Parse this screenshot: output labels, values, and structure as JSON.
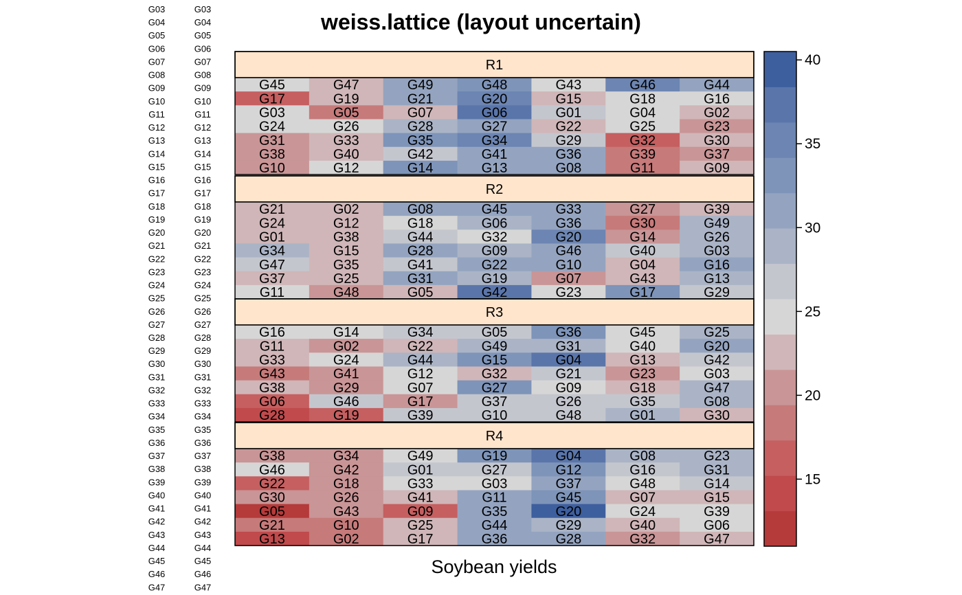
{
  "chart_data": {
    "type": "heatmap",
    "title": "weiss.lattice (layout uncertain)",
    "xlabel": "Soybean yields",
    "ylabel": "",
    "side_labels_col1": [
      "G03",
      "G04",
      "G05",
      "G06",
      "G07",
      "G08",
      "G09",
      "G10",
      "G11",
      "G12",
      "G13",
      "G14",
      "G15",
      "G16",
      "G17",
      "G18",
      "G19",
      "G20",
      "G21",
      "G22",
      "G23",
      "G24",
      "G25",
      "G26",
      "G27",
      "G28",
      "G29",
      "G30",
      "G31",
      "G32",
      "G33",
      "G34",
      "G35",
      "G36",
      "G37",
      "G38",
      "G39",
      "G40",
      "G41",
      "G42",
      "G43",
      "G44",
      "G45",
      "G46",
      "G47"
    ],
    "side_labels_col2": [
      "G03",
      "G04",
      "G05",
      "G06",
      "G07",
      "G08",
      "G09",
      "G10",
      "G11",
      "G12",
      "G13",
      "G14",
      "G15",
      "G16",
      "G17",
      "G18",
      "G19",
      "G20",
      "G21",
      "G22",
      "G23",
      "G24",
      "G25",
      "G26",
      "G27",
      "G28",
      "G29",
      "G30",
      "G31",
      "G32",
      "G33",
      "G34",
      "G35",
      "G36",
      "G37",
      "G38",
      "G39",
      "G40",
      "G41",
      "G42",
      "G43",
      "G44",
      "G45",
      "G46",
      "G47"
    ],
    "colorbar": {
      "range": [
        11,
        40.5
      ],
      "ticks": [
        15,
        20,
        25,
        30,
        35,
        40
      ],
      "colors": [
        "#b53a3a",
        "#c04a4c",
        "#c55f60",
        "#c67a7a",
        "#c99596",
        "#d0b6b8",
        "#d6d6d6",
        "#c4c6ce",
        "#aab4c6",
        "#94a4c0",
        "#7e94b9",
        "#6c85b2",
        "#5a75aa",
        "#3e5f9e"
      ]
    },
    "panels": [
      {
        "name": "R1",
        "rows": [
          {
            "labels": [
              "G45",
              "G47",
              "G49",
              "G48",
              "G43",
              "G46",
              "G44"
            ],
            "values": [
              25,
              23,
              32,
              33,
              25,
              35,
              30
            ]
          },
          {
            "labels": [
              "G17",
              "G19",
              "G21",
              "G20",
              "G15",
              "G18",
              "G16"
            ],
            "values": [
              17,
              23,
              30,
              36,
              23,
              25,
              25
            ]
          },
          {
            "labels": [
              "G03",
              "G05",
              "G07",
              "G06",
              "G01",
              "G04",
              "G02"
            ],
            "values": [
              25,
              18,
              23,
              37,
              27,
              25,
              23
            ]
          },
          {
            "labels": [
              "G24",
              "G26",
              "G28",
              "G27",
              "G22",
              "G25",
              "G23"
            ],
            "values": [
              25,
              25,
              28,
              31,
              23,
              25,
              20
            ]
          },
          {
            "labels": [
              "G31",
              "G33",
              "G35",
              "G34",
              "G29",
              "G32",
              "G30"
            ],
            "values": [
              21,
              23,
              33,
              36,
              27,
              17,
              23
            ]
          },
          {
            "labels": [
              "G38",
              "G40",
              "G42",
              "G41",
              "G36",
              "G39",
              "G37"
            ],
            "values": [
              21,
              23,
              27,
              31,
              30,
              18,
              21
            ]
          },
          {
            "labels": [
              "G10",
              "G12",
              "G14",
              "G13",
              "G08",
              "G11",
              "G09"
            ],
            "values": [
              21,
              25,
              33,
              30,
              31,
              18,
              22
            ]
          }
        ]
      },
      {
        "name": "R2",
        "rows": [
          {
            "labels": [
              "G21",
              "G02",
              "G08",
              "G45",
              "G33",
              "G27",
              "G39"
            ],
            "values": [
              23,
              23,
              30,
              31,
              31,
              20,
              22
            ]
          },
          {
            "labels": [
              "G24",
              "G12",
              "G18",
              "G06",
              "G36",
              "G30",
              "G49"
            ],
            "values": [
              23,
              23,
              25,
              28,
              31,
              18,
              29
            ]
          },
          {
            "labels": [
              "G01",
              "G38",
              "G44",
              "G32",
              "G20",
              "G14",
              "G26"
            ],
            "values": [
              23,
              23,
              27,
              25,
              35,
              21,
              29
            ]
          },
          {
            "labels": [
              "G34",
              "G15",
              "G28",
              "G09",
              "G46",
              "G40",
              "G03"
            ],
            "values": [
              29,
              23,
              31,
              29,
              30,
              26,
              29
            ]
          },
          {
            "labels": [
              "G47",
              "G35",
              "G41",
              "G22",
              "G10",
              "G04",
              "G16"
            ],
            "values": [
              27,
              23,
              27,
              31,
              30,
              22,
              31
            ]
          },
          {
            "labels": [
              "G37",
              "G25",
              "G31",
              "G19",
              "G07",
              "G43",
              "G13"
            ],
            "values": [
              22,
              23,
              30,
              29,
              20,
              23,
              28
            ]
          },
          {
            "labels": [
              "G11",
              "G48",
              "G05",
              "G42",
              "G23",
              "G17",
              "G29"
            ],
            "values": [
              25,
              20,
              22,
              38,
              25,
              34,
              27
            ]
          }
        ]
      },
      {
        "name": "R3",
        "rows": [
          {
            "labels": [
              "G16",
              "G14",
              "G34",
              "G05",
              "G36",
              "G45",
              "G25"
            ],
            "values": [
              25,
              25,
              27,
              27,
              34,
              25,
              29
            ]
          },
          {
            "labels": [
              "G11",
              "G02",
              "G22",
              "G49",
              "G31",
              "G40",
              "G20"
            ],
            "values": [
              23,
              20,
              23,
              29,
              28,
              25,
              31
            ]
          },
          {
            "labels": [
              "G33",
              "G24",
              "G44",
              "G15",
              "G04",
              "G13",
              "G42"
            ],
            "values": [
              23,
              25,
              29,
              33,
              37,
              23,
              27
            ]
          },
          {
            "labels": [
              "G43",
              "G41",
              "G12",
              "G32",
              "G21",
              "G23",
              "G03"
            ],
            "values": [
              18,
              20,
              25,
              23,
              27,
              21,
              25
            ]
          },
          {
            "labels": [
              "G38",
              "G29",
              "G07",
              "G27",
              "G09",
              "G18",
              "G47"
            ],
            "values": [
              23,
              21,
              25,
              33,
              25,
              23,
              29
            ]
          },
          {
            "labels": [
              "G06",
              "G46",
              "G17",
              "G37",
              "G26",
              "G35",
              "G08"
            ],
            "values": [
              17,
              27,
              20,
              27,
              27,
              27,
              29
            ]
          },
          {
            "labels": [
              "G28",
              "G19",
              "G39",
              "G10",
              "G48",
              "G01",
              "G30"
            ],
            "values": [
              15,
              17,
              27,
              27,
              27,
              29,
              22
            ]
          }
        ]
      },
      {
        "name": "R4",
        "rows": [
          {
            "labels": [
              "G38",
              "G34",
              "G49",
              "G19",
              "G04",
              "G08",
              "G23"
            ],
            "values": [
              20,
              20,
              25,
              34,
              37,
              29,
              28
            ]
          },
          {
            "labels": [
              "G46",
              "G42",
              "G01",
              "G27",
              "G12",
              "G16",
              "G31"
            ],
            "values": [
              25,
              20,
              27,
              27,
              33,
              27,
              29
            ]
          },
          {
            "labels": [
              "G22",
              "G18",
              "G33",
              "G03",
              "G37",
              "G48",
              "G14"
            ],
            "values": [
              17,
              21,
              25,
              25,
              30,
              25,
              27
            ]
          },
          {
            "labels": [
              "G30",
              "G26",
              "G41",
              "G11",
              "G45",
              "G07",
              "G15"
            ],
            "values": [
              20,
              20,
              23,
              30,
              33,
              23,
              23
            ]
          },
          {
            "labels": [
              "G05",
              "G43",
              "G09",
              "G35",
              "G20",
              "G24",
              "G39"
            ],
            "values": [
              13,
              20,
              16,
              30,
              39,
              25,
              25
            ]
          },
          {
            "labels": [
              "G21",
              "G10",
              "G25",
              "G44",
              "G29",
              "G40",
              "G06"
            ],
            "values": [
              19,
              18,
              23,
              30,
              28,
              23,
              25
            ]
          },
          {
            "labels": [
              "G13",
              "G02",
              "G17",
              "G36",
              "G28",
              "G32",
              "G47"
            ],
            "values": [
              15,
              18,
              23,
              30,
              31,
              21,
              23
            ]
          }
        ]
      }
    ]
  }
}
